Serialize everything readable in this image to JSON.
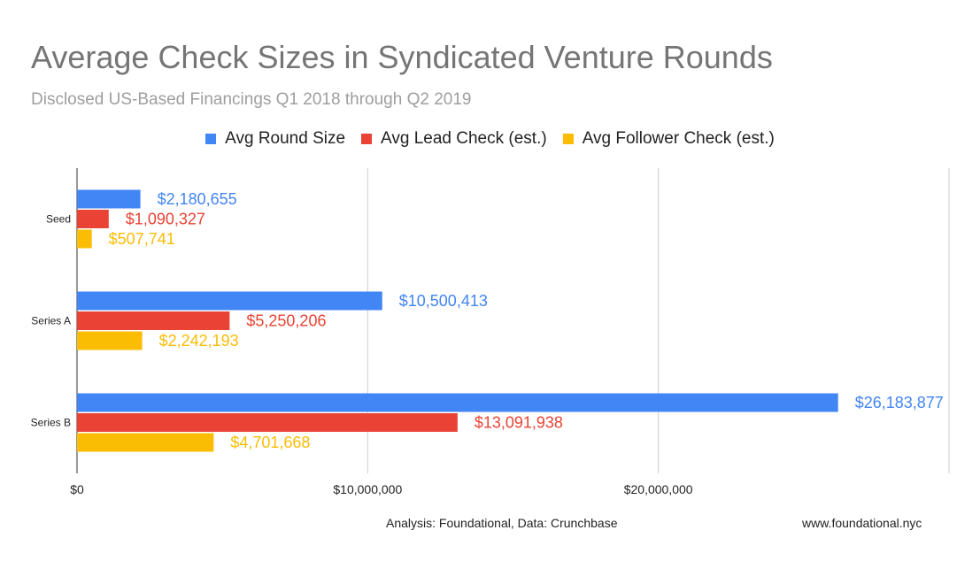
{
  "chart_data": {
    "type": "bar",
    "orientation": "horizontal",
    "title": "Average Check Sizes in Syndicated Venture Rounds",
    "subtitle": "Disclosed US-Based Financings Q1 2018 through Q2 2019",
    "categories": [
      "Seed",
      "Series A",
      "Series B"
    ],
    "series": [
      {
        "name": "Avg Round Size",
        "color": "#4285f4",
        "values": [
          2180655,
          10500413,
          26183877
        ],
        "labels": [
          "$2,180,655",
          "$10,500,413",
          "$26,183,877"
        ]
      },
      {
        "name": "Avg Lead Check (est.)",
        "color": "#ea4335",
        "values": [
          1090327,
          5250206,
          13091938
        ],
        "labels": [
          "$1,090,327",
          "$5,250,206",
          "$13,091,938"
        ]
      },
      {
        "name": "Avg Follower Check (est.)",
        "color": "#fbbc04",
        "values": [
          507741,
          2242193,
          4701668
        ],
        "labels": [
          "$507,741",
          "$2,242,193",
          "$4,701,668"
        ]
      }
    ],
    "xlim": [
      0,
      30000000
    ],
    "xticks": [
      0,
      10000000,
      20000000
    ],
    "xtick_labels": [
      "$0",
      "$10,000,000",
      "$20,000,000"
    ],
    "grid": true,
    "legend_position": "top"
  },
  "footer": {
    "source": "Analysis: Foundational, Data: Crunchbase",
    "website": "www.foundational.nyc"
  }
}
